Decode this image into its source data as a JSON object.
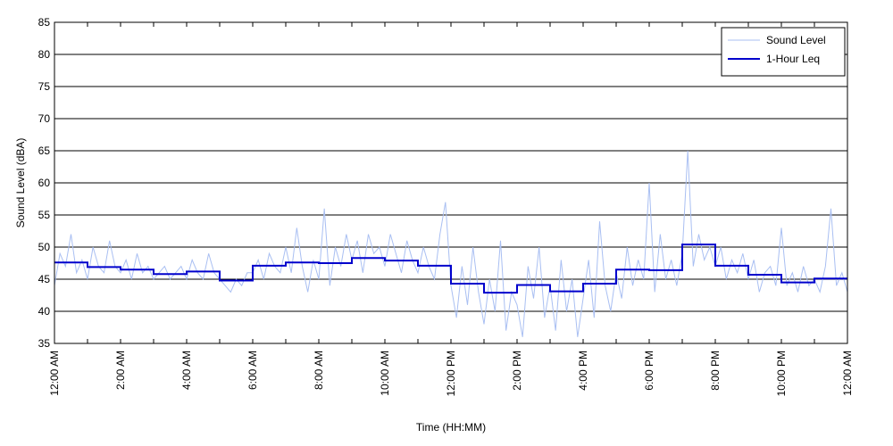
{
  "chart_data": {
    "type": "line",
    "xlabel": "Time (HH:MM)",
    "ylabel": "Sound Level (dBA)",
    "xlim": [
      0,
      1440
    ],
    "xticks": [
      {
        "value": 0,
        "label": "12:00 AM"
      },
      {
        "value": 120,
        "label": "2:00 AM"
      },
      {
        "value": 240,
        "label": "4:00 AM"
      },
      {
        "value": 360,
        "label": "6:00 AM"
      },
      {
        "value": 480,
        "label": "8:00 AM"
      },
      {
        "value": 600,
        "label": "10:00 AM"
      },
      {
        "value": 720,
        "label": "12:00 PM"
      },
      {
        "value": 840,
        "label": "2:00 PM"
      },
      {
        "value": 960,
        "label": "4:00 PM"
      },
      {
        "value": 1080,
        "label": "6:00 PM"
      },
      {
        "value": 1200,
        "label": "8:00 PM"
      },
      {
        "value": 1320,
        "label": "10:00 PM"
      },
      {
        "value": 1440,
        "label": "12:00 AM"
      }
    ],
    "xminorticks": [
      60,
      180,
      300,
      420,
      540,
      660,
      780,
      900,
      1020,
      1140,
      1260,
      1380
    ],
    "ylim": [
      35,
      85
    ],
    "yticks": [
      35,
      40,
      45,
      50,
      55,
      60,
      65,
      70,
      75,
      80,
      85
    ],
    "grid": true,
    "legend": "upper right",
    "series": [
      {
        "name": "Sound Level",
        "color": "#a9bff2",
        "width": 1,
        "x": [
          0,
          10,
          20,
          30,
          40,
          50,
          60,
          70,
          80,
          90,
          100,
          110,
          120,
          130,
          140,
          150,
          160,
          170,
          180,
          190,
          200,
          210,
          220,
          230,
          240,
          250,
          260,
          270,
          280,
          290,
          300,
          310,
          320,
          330,
          340,
          350,
          360,
          370,
          380,
          390,
          400,
          410,
          420,
          430,
          440,
          450,
          460,
          470,
          480,
          490,
          500,
          510,
          520,
          530,
          540,
          550,
          560,
          570,
          580,
          590,
          600,
          610,
          620,
          630,
          640,
          650,
          660,
          670,
          680,
          690,
          700,
          710,
          720,
          730,
          740,
          750,
          760,
          770,
          780,
          790,
          800,
          810,
          820,
          830,
          840,
          850,
          860,
          870,
          880,
          890,
          900,
          910,
          920,
          930,
          940,
          950,
          960,
          970,
          980,
          990,
          1000,
          1010,
          1020,
          1030,
          1040,
          1050,
          1060,
          1070,
          1080,
          1090,
          1100,
          1110,
          1120,
          1130,
          1140,
          1150,
          1160,
          1170,
          1180,
          1190,
          1200,
          1210,
          1220,
          1230,
          1240,
          1250,
          1260,
          1270,
          1280,
          1290,
          1300,
          1310,
          1320,
          1330,
          1340,
          1350,
          1360,
          1370,
          1380,
          1390,
          1400,
          1410,
          1420,
          1430,
          1440
        ],
        "values": [
          44,
          49,
          47,
          52,
          46,
          48,
          45,
          50,
          47,
          46,
          51,
          47,
          46,
          48,
          45,
          49,
          46,
          47,
          45,
          46,
          47,
          45,
          46,
          47,
          45,
          48,
          46,
          45,
          49,
          46,
          45,
          44,
          43,
          45,
          44,
          46,
          46,
          48,
          45,
          49,
          47,
          46,
          50,
          46,
          53,
          47,
          43,
          48,
          45,
          56,
          44,
          50,
          47,
          52,
          48,
          51,
          46,
          52,
          49,
          50,
          47,
          52,
          49,
          46,
          51,
          48,
          46,
          50,
          47,
          45,
          52,
          57,
          44,
          39,
          47,
          41,
          50,
          43,
          38,
          45,
          40,
          51,
          37,
          43,
          41,
          36,
          47,
          42,
          50,
          39,
          44,
          37,
          48,
          40,
          45,
          36,
          42,
          48,
          39,
          54,
          44,
          40,
          46,
          42,
          50,
          44,
          48,
          45,
          60,
          43,
          52,
          45,
          48,
          44,
          49,
          65,
          47,
          52,
          48,
          50,
          47,
          50,
          45,
          48,
          46,
          49,
          45,
          48,
          43,
          46,
          47,
          44,
          53,
          44,
          46,
          43,
          47,
          44,
          45,
          43,
          47,
          56,
          44,
          46,
          43
        ]
      },
      {
        "name": "1-Hour Leq",
        "color": "#0000cc",
        "width": 2,
        "drawstyle": "steps-post",
        "x": [
          0,
          60,
          120,
          180,
          240,
          300,
          360,
          420,
          480,
          540,
          600,
          660,
          720,
          780,
          840,
          900,
          960,
          1020,
          1080,
          1140,
          1200,
          1260,
          1320,
          1380
        ],
        "values": [
          47.6,
          46.9,
          46.5,
          45.8,
          46.2,
          44.8,
          47.1,
          47.6,
          47.5,
          48.3,
          47.9,
          47.1,
          44.3,
          42.9,
          44.1,
          43.1,
          44.3,
          46.5,
          46.4,
          50.4,
          47.1,
          45.7,
          44.5,
          45.1
        ]
      }
    ]
  }
}
